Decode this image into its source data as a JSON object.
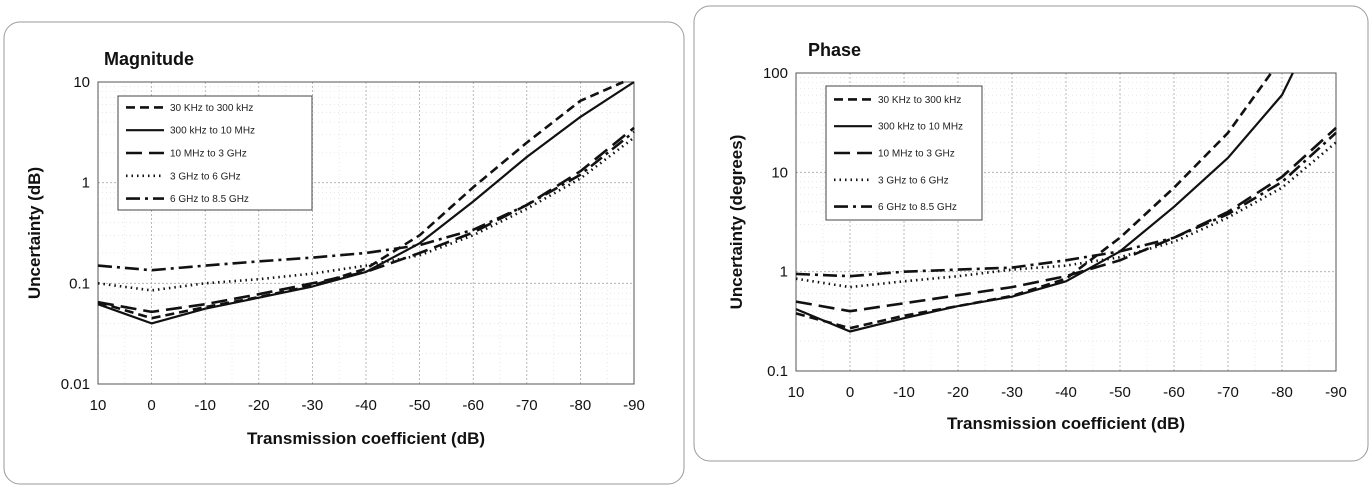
{
  "chart_data": [
    {
      "type": "line",
      "title": "Magnitude",
      "xlabel": "Transmission coefficient (dB)",
      "ylabel": "Uncertainty (dB)",
      "xlim": [
        10,
        -90
      ],
      "ylim": [
        0.01,
        10
      ],
      "ylog": true,
      "x_ticks": [
        "10",
        "0",
        "-10",
        "-20",
        "-30",
        "-40",
        "-50",
        "-60",
        "-70",
        "-80",
        "-90"
      ],
      "y_ticks": [
        "10",
        "1",
        "0.1",
        "0.01"
      ],
      "grid": true,
      "legend_position": "top-left",
      "series": [
        {
          "name": "30 KHz to 300 kHz",
          "style": "dash",
          "x": [
            10,
            0,
            -10,
            -20,
            -30,
            -40,
            -50,
            -60,
            -70,
            -80,
            -88
          ],
          "y": [
            0.065,
            0.045,
            0.058,
            0.073,
            0.095,
            0.14,
            0.3,
            0.9,
            2.5,
            6.5,
            12
          ]
        },
        {
          "name": "300 kHz to 10 MHz",
          "style": "solid",
          "x": [
            10,
            0,
            -10,
            -20,
            -30,
            -40,
            -50,
            -60,
            -70,
            -80,
            -90
          ],
          "y": [
            0.062,
            0.04,
            0.056,
            0.072,
            0.093,
            0.13,
            0.25,
            0.65,
            1.8,
            4.5,
            11
          ]
        },
        {
          "name": "10 MHz to 3 GHz",
          "style": "longdash",
          "x": [
            10,
            0,
            -10,
            -20,
            -30,
            -40,
            -50,
            -60,
            -70,
            -80,
            -90
          ],
          "y": [
            0.065,
            0.052,
            0.062,
            0.078,
            0.1,
            0.13,
            0.2,
            0.32,
            0.6,
            1.3,
            3.5
          ]
        },
        {
          "name": "3 GHz to 6 GHz",
          "style": "dot",
          "x": [
            10,
            0,
            -10,
            -20,
            -30,
            -40,
            -50,
            -60,
            -70,
            -80,
            -90
          ],
          "y": [
            0.1,
            0.085,
            0.1,
            0.11,
            0.125,
            0.15,
            0.19,
            0.3,
            0.55,
            1.1,
            2.8
          ]
        },
        {
          "name": "6 GHz to 8.5 GHz",
          "style": "dashdot",
          "x": [
            10,
            0,
            -10,
            -20,
            -30,
            -40,
            -50,
            -60,
            -70,
            -80,
            -90
          ],
          "y": [
            0.15,
            0.135,
            0.15,
            0.165,
            0.18,
            0.2,
            0.24,
            0.34,
            0.6,
            1.2,
            3.2
          ]
        }
      ]
    },
    {
      "type": "line",
      "title": "Phase",
      "xlabel": "Transmission coefficient (dB)",
      "ylabel": "Uncertainty (degrees)",
      "xlim": [
        10,
        -90
      ],
      "ylim": [
        0.1,
        100
      ],
      "ylog": true,
      "x_ticks": [
        "10",
        "0",
        "-10",
        "-20",
        "-30",
        "-40",
        "-50",
        "-60",
        "-70",
        "-80",
        "-90"
      ],
      "y_ticks": [
        "100",
        "10",
        "1",
        "0.1"
      ],
      "grid": true,
      "legend_position": "top-left",
      "series": [
        {
          "name": "30 KHz to 300 kHz",
          "style": "dash",
          "x": [
            10,
            0,
            -10,
            -20,
            -30,
            -40,
            -50,
            -60,
            -70,
            -78
          ],
          "y": [
            0.38,
            0.27,
            0.36,
            0.45,
            0.57,
            0.85,
            2.2,
            7,
            25,
            100
          ]
        },
        {
          "name": "300 kHz to 10 MHz",
          "style": "solid",
          "x": [
            10,
            0,
            -10,
            -20,
            -30,
            -40,
            -50,
            -60,
            -70,
            -80,
            -82
          ],
          "y": [
            0.42,
            0.25,
            0.34,
            0.45,
            0.56,
            0.8,
            1.6,
            4.5,
            14,
            60,
            100
          ]
        },
        {
          "name": "10 MHz to 3 GHz",
          "style": "longdash",
          "x": [
            10,
            0,
            -10,
            -20,
            -30,
            -40,
            -50,
            -60,
            -70,
            -80,
            -90
          ],
          "y": [
            0.5,
            0.4,
            0.48,
            0.58,
            0.7,
            0.9,
            1.3,
            2.2,
            4,
            9,
            28
          ]
        },
        {
          "name": "3 GHz to 6 GHz",
          "style": "dot",
          "x": [
            10,
            0,
            -10,
            -20,
            -30,
            -40,
            -50,
            -60,
            -70,
            -80,
            -90
          ],
          "y": [
            0.85,
            0.7,
            0.8,
            0.9,
            1.05,
            1.15,
            1.4,
            2,
            3.5,
            7,
            20
          ]
        },
        {
          "name": "6 GHz to 8.5 GHz",
          "style": "dashdot",
          "x": [
            10,
            0,
            -10,
            -20,
            -30,
            -40,
            -50,
            -60,
            -70,
            -80,
            -90
          ],
          "y": [
            0.95,
            0.9,
            1.0,
            1.05,
            1.1,
            1.3,
            1.6,
            2.2,
            3.8,
            8,
            25
          ]
        }
      ]
    }
  ]
}
